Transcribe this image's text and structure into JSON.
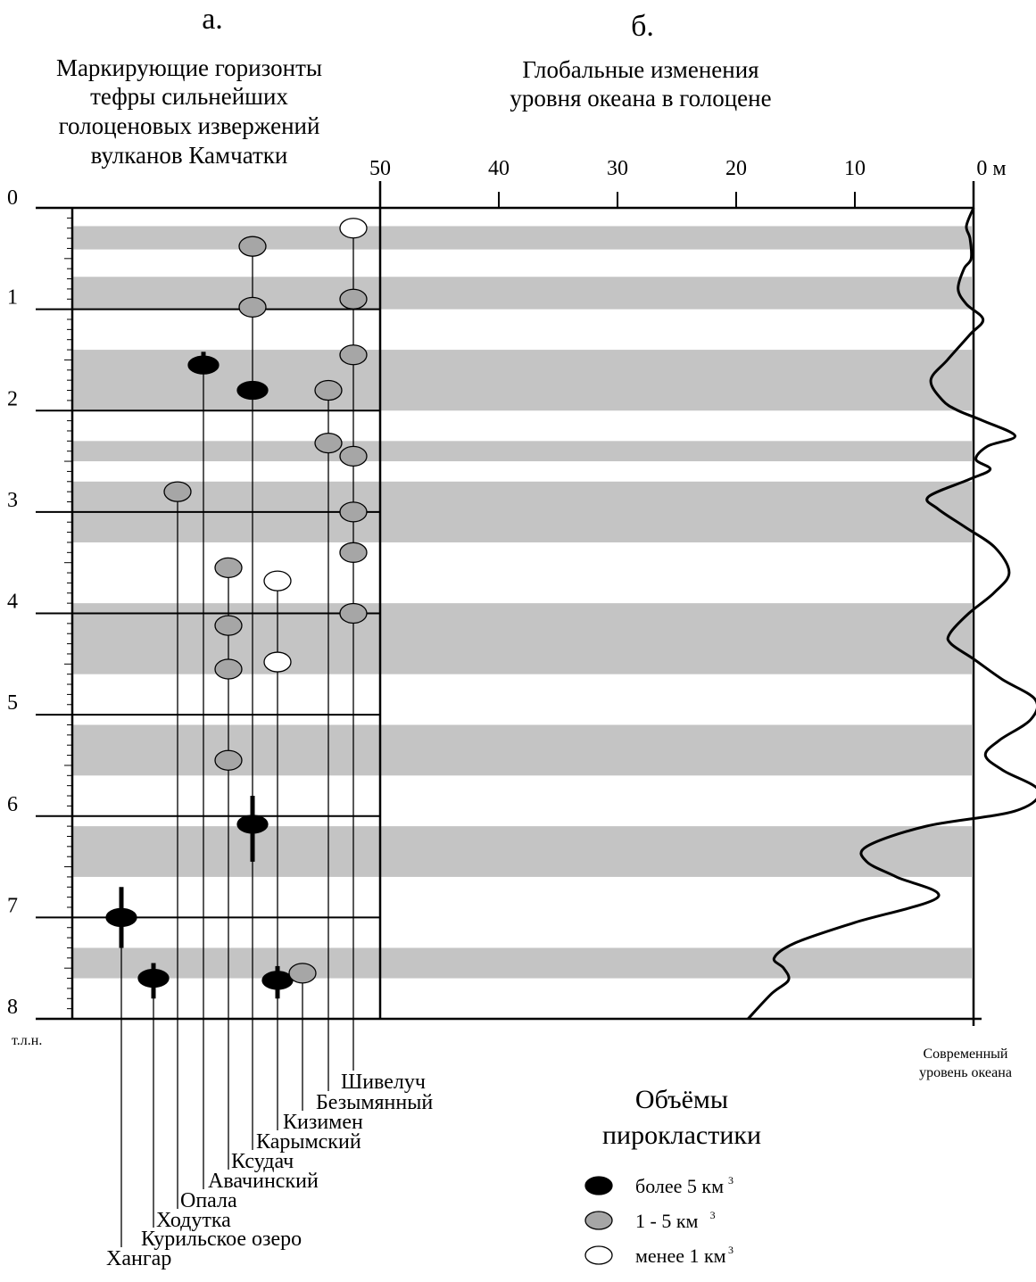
{
  "panel_a": {
    "letter": "а.",
    "title_lines": [
      "Маркирующие горизонты",
      "тефры сильнейших",
      "голоценовых извержений",
      "вулканов Камчатки"
    ]
  },
  "panel_b": {
    "letter": "б.",
    "title_lines": [
      "Глобальные изменения",
      "уровня океана в голоцене"
    ]
  },
  "modern_level_label": [
    "Современный",
    "уровень океана"
  ],
  "legend": {
    "title_lines": [
      "Объёмы",
      "пирокластики"
    ],
    "items": [
      {
        "fill": "#000000",
        "label": "более 5 км",
        "sup": "3"
      },
      {
        "fill": "#a6a6a6",
        "label": "1 - 5 км",
        "sup": "3"
      },
      {
        "fill": "#ffffff",
        "label": "менее 1 км",
        "sup": "3"
      }
    ]
  },
  "colors": {
    "band": "#c4c4c4",
    "gray_marker": "#a6a6a6",
    "black_marker": "#000000",
    "ink": "#000000"
  },
  "chart_data": {
    "type": "line",
    "y_axis": {
      "unit_label": "т.л.н.",
      "ticks": [
        0,
        1,
        2,
        3,
        4,
        5,
        6,
        7,
        8
      ],
      "range": [
        0,
        8
      ],
      "inverted": true
    },
    "x_axis": {
      "ticks": [
        50,
        40,
        30,
        20,
        10,
        0
      ],
      "tick_labels": [
        "50",
        "40",
        "30",
        "20",
        "10",
        "0 м"
      ],
      "range": [
        50,
        0
      ],
      "ticks_position": "top"
    },
    "bands": [
      [
        0.18,
        0.41
      ],
      [
        0.68,
        1.0
      ],
      [
        1.4,
        2.0
      ],
      [
        2.3,
        2.5
      ],
      [
        2.7,
        3.3
      ],
      [
        3.9,
        4.6
      ],
      [
        5.1,
        5.6
      ],
      [
        6.1,
        6.6
      ],
      [
        7.3,
        7.6
      ]
    ],
    "sea_level_curve": [
      [
        0.0,
        0.0
      ],
      [
        0.18,
        0.6
      ],
      [
        0.3,
        0.3
      ],
      [
        0.5,
        0.2
      ],
      [
        0.6,
        0.8
      ],
      [
        0.8,
        1.3
      ],
      [
        0.95,
        0.6
      ],
      [
        1.1,
        -0.8
      ],
      [
        1.25,
        0.3
      ],
      [
        1.5,
        2.2
      ],
      [
        1.7,
        3.6
      ],
      [
        1.9,
        2.6
      ],
      [
        2.0,
        1.3
      ],
      [
        2.1,
        -0.8
      ],
      [
        2.25,
        -3.5
      ],
      [
        2.35,
        -1.2
      ],
      [
        2.48,
        -0.2
      ],
      [
        2.58,
        -1.4
      ],
      [
        2.68,
        0.4
      ],
      [
        2.85,
        3.8
      ],
      [
        2.97,
        3.0
      ],
      [
        3.15,
        0.7
      ],
      [
        3.35,
        -1.8
      ],
      [
        3.6,
        -3.0
      ],
      [
        3.8,
        -1.7
      ],
      [
        4.0,
        0.4
      ],
      [
        4.2,
        2.0
      ],
      [
        4.3,
        1.9
      ],
      [
        4.45,
        0.0
      ],
      [
        4.65,
        -2.4
      ],
      [
        4.85,
        -5.2
      ],
      [
        5.05,
        -4.8
      ],
      [
        5.25,
        -2.2
      ],
      [
        5.4,
        -1.0
      ],
      [
        5.55,
        -2.5
      ],
      [
        5.75,
        -5.5
      ],
      [
        5.95,
        -3.5
      ],
      [
        6.1,
        4.0
      ],
      [
        6.3,
        9.0
      ],
      [
        6.45,
        9.0
      ],
      [
        6.6,
        6.5
      ],
      [
        6.8,
        3.0
      ],
      [
        7.05,
        10.0
      ],
      [
        7.25,
        15.0
      ],
      [
        7.4,
        16.8
      ],
      [
        7.5,
        16.0
      ],
      [
        7.62,
        15.6
      ],
      [
        7.75,
        17.0
      ],
      [
        8.0,
        19.0
      ]
    ],
    "volcanoes": [
      {
        "name": "Хангар",
        "ages": [
          7.0
        ],
        "sizes": [
          ">5"
        ],
        "range": [
          6.7,
          7.3
        ],
        "x_index": 1
      },
      {
        "name": "Курильское озеро",
        "ages": [
          7.6
        ],
        "sizes": [
          ">5"
        ],
        "range": [
          7.45,
          7.8
        ],
        "x_index": 2
      },
      {
        "name": "Ходутка",
        "ages": [
          2.8
        ],
        "sizes": [
          "1-5"
        ],
        "range": null,
        "x_index": 3
      },
      {
        "name": "Опала",
        "ages": [
          1.55
        ],
        "sizes": [
          ">5"
        ],
        "range": [
          1.42,
          1.58
        ],
        "x_index": 4
      },
      {
        "name": "Авачинский",
        "ages": [
          3.55,
          4.12,
          4.55,
          5.45
        ],
        "sizes": [
          "1-5",
          "1-5",
          "1-5",
          "1-5"
        ],
        "range": null,
        "x_index": 5
      },
      {
        "name": "Ксудач",
        "ages": [
          0.38,
          0.98,
          1.8,
          6.08
        ],
        "sizes": [
          "1-5",
          "1-5",
          ">5",
          ">5"
        ],
        "range": [
          5.8,
          6.45
        ],
        "x_index": 6
      },
      {
        "name": "Карымский",
        "ages": [
          3.68,
          4.48,
          7.62
        ],
        "sizes": [
          "<1",
          "<1",
          ">5"
        ],
        "range": [
          7.48,
          7.8
        ],
        "x_index": 7
      },
      {
        "name": "Кизимен",
        "ages": [
          7.55
        ],
        "sizes": [
          "1-5"
        ],
        "range": null,
        "x_index": 8
      },
      {
        "name": "Безымянный",
        "ages": [
          1.8,
          2.32
        ],
        "sizes": [
          "1-5",
          "1-5"
        ],
        "range": null,
        "x_index": 9
      },
      {
        "name": "Шивелуч",
        "ages": [
          0.2,
          0.9,
          1.45,
          2.45,
          3.0,
          3.4,
          4.0
        ],
        "sizes": [
          "<1",
          "1-5",
          "1-5",
          "1-5",
          "1-5",
          "1-5",
          "1-5"
        ],
        "range": null,
        "x_index": 10
      }
    ]
  }
}
